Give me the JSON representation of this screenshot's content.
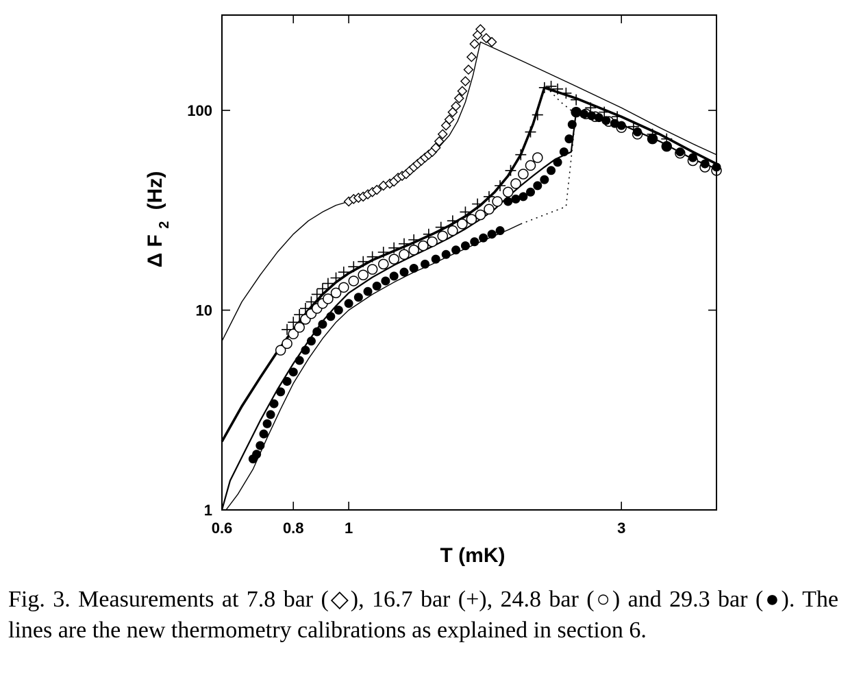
{
  "chart_data": {
    "type": "scatter",
    "xlabel": "T (mK)",
    "ylabel": {
      "main": "Δ F",
      "subscript": "2",
      "unit": "(Hz)"
    },
    "x_scale": "log",
    "y_scale": "log",
    "xlim": [
      0.6,
      4.4
    ],
    "ylim": [
      1,
      300
    ],
    "x_ticks": [
      {
        "value": 0.6,
        "label": "0.6"
      },
      {
        "value": 0.8,
        "label": "0.8"
      },
      {
        "value": 1,
        "label": "1"
      },
      {
        "value": 3,
        "label": "3"
      }
    ],
    "y_ticks": [
      {
        "value": 1,
        "label": "1"
      },
      {
        "value": 10,
        "label": "10"
      },
      {
        "value": 100,
        "label": "100"
      }
    ],
    "series": [
      {
        "marker": "diamond-open",
        "points": [
          [
            1.0,
            35
          ],
          [
            1.02,
            36
          ],
          [
            1.04,
            36.5
          ],
          [
            1.06,
            37
          ],
          [
            1.08,
            38
          ],
          [
            1.1,
            39
          ],
          [
            1.12,
            40
          ],
          [
            1.15,
            42
          ],
          [
            1.18,
            43
          ],
          [
            1.2,
            44
          ],
          [
            1.22,
            46
          ],
          [
            1.24,
            47
          ],
          [
            1.26,
            48
          ],
          [
            1.28,
            50
          ],
          [
            1.3,
            52
          ],
          [
            1.32,
            54
          ],
          [
            1.34,
            56
          ],
          [
            1.36,
            58
          ],
          [
            1.38,
            60
          ],
          [
            1.4,
            62
          ],
          [
            1.42,
            65
          ],
          [
            1.44,
            70
          ],
          [
            1.46,
            76
          ],
          [
            1.48,
            84
          ],
          [
            1.5,
            90
          ],
          [
            1.52,
            98
          ],
          [
            1.54,
            105
          ],
          [
            1.56,
            115
          ],
          [
            1.58,
            125
          ],
          [
            1.6,
            140
          ],
          [
            1.62,
            160
          ],
          [
            1.64,
            185
          ],
          [
            1.66,
            215
          ],
          [
            1.68,
            238
          ],
          [
            1.7,
            255
          ],
          [
            1.74,
            230
          ],
          [
            1.78,
            220
          ]
        ]
      },
      {
        "marker": "plus",
        "points": [
          [
            0.78,
            8
          ],
          [
            0.8,
            8.7
          ],
          [
            0.82,
            9.5
          ],
          [
            0.84,
            10.2
          ],
          [
            0.86,
            11
          ],
          [
            0.88,
            12
          ],
          [
            0.9,
            12.8
          ],
          [
            0.92,
            13.6
          ],
          [
            0.95,
            14.5
          ],
          [
            0.98,
            15.5
          ],
          [
            1.02,
            16.5
          ],
          [
            1.06,
            17.5
          ],
          [
            1.1,
            18.5
          ],
          [
            1.15,
            19.5
          ],
          [
            1.2,
            20.5
          ],
          [
            1.25,
            21.5
          ],
          [
            1.3,
            22.5
          ],
          [
            1.38,
            24
          ],
          [
            1.45,
            26
          ],
          [
            1.52,
            28
          ],
          [
            1.6,
            31
          ],
          [
            1.68,
            34
          ],
          [
            1.76,
            37
          ],
          [
            1.84,
            42
          ],
          [
            1.92,
            50
          ],
          [
            2.0,
            60
          ],
          [
            2.08,
            78
          ],
          [
            2.14,
            95
          ],
          [
            2.2,
            130
          ],
          [
            2.26,
            132
          ],
          [
            2.32,
            128
          ],
          [
            2.4,
            122
          ],
          [
            2.5,
            113
          ],
          [
            2.65,
            103
          ],
          [
            2.8,
            98
          ],
          [
            2.95,
            93
          ],
          [
            3.15,
            83
          ],
          [
            3.4,
            76
          ],
          [
            3.6,
            72
          ]
        ]
      },
      {
        "marker": "circle-open",
        "points": [
          [
            0.76,
            6.3
          ],
          [
            0.78,
            6.8
          ],
          [
            0.8,
            7.6
          ],
          [
            0.82,
            8.2
          ],
          [
            0.84,
            9
          ],
          [
            0.86,
            9.6
          ],
          [
            0.88,
            10.2
          ],
          [
            0.9,
            10.8
          ],
          [
            0.92,
            11.4
          ],
          [
            0.95,
            12.2
          ],
          [
            0.98,
            13
          ],
          [
            1.02,
            14
          ],
          [
            1.06,
            15
          ],
          [
            1.1,
            16
          ],
          [
            1.15,
            17
          ],
          [
            1.2,
            18
          ],
          [
            1.25,
            19
          ],
          [
            1.3,
            20
          ],
          [
            1.35,
            21
          ],
          [
            1.4,
            22
          ],
          [
            1.46,
            23.5
          ],
          [
            1.52,
            25
          ],
          [
            1.58,
            27
          ],
          [
            1.64,
            28.5
          ],
          [
            1.7,
            30
          ],
          [
            1.76,
            32
          ],
          [
            1.82,
            35
          ],
          [
            1.9,
            39
          ],
          [
            1.96,
            43
          ],
          [
            2.02,
            48
          ],
          [
            2.08,
            53
          ],
          [
            2.14,
            58
          ],
          [
            2.5,
            98
          ],
          [
            2.6,
            96
          ],
          [
            2.7,
            93
          ],
          [
            2.85,
            88
          ],
          [
            3.0,
            82
          ],
          [
            3.2,
            76
          ],
          [
            3.4,
            72
          ],
          [
            3.6,
            66
          ],
          [
            3.8,
            61
          ],
          [
            4.0,
            56
          ],
          [
            4.2,
            52
          ],
          [
            4.4,
            50
          ]
        ]
      },
      {
        "marker": "circle-filled",
        "points": [
          [
            0.68,
            1.8
          ],
          [
            0.69,
            1.9
          ],
          [
            0.7,
            2.1
          ],
          [
            0.71,
            2.4
          ],
          [
            0.72,
            2.7
          ],
          [
            0.73,
            3
          ],
          [
            0.74,
            3.4
          ],
          [
            0.76,
            3.9
          ],
          [
            0.78,
            4.4
          ],
          [
            0.8,
            4.9
          ],
          [
            0.82,
            5.6
          ],
          [
            0.84,
            6.3
          ],
          [
            0.86,
            7
          ],
          [
            0.88,
            7.8
          ],
          [
            0.9,
            8.5
          ],
          [
            0.93,
            9.3
          ],
          [
            0.96,
            10
          ],
          [
            1.0,
            10.8
          ],
          [
            1.04,
            11.6
          ],
          [
            1.08,
            12.4
          ],
          [
            1.12,
            13.2
          ],
          [
            1.16,
            14
          ],
          [
            1.2,
            14.8
          ],
          [
            1.25,
            15.5
          ],
          [
            1.3,
            16.2
          ],
          [
            1.36,
            17
          ],
          [
            1.42,
            18
          ],
          [
            1.48,
            19
          ],
          [
            1.54,
            20
          ],
          [
            1.6,
            21
          ],
          [
            1.66,
            22
          ],
          [
            1.72,
            23
          ],
          [
            1.78,
            24
          ],
          [
            1.84,
            25
          ],
          [
            1.9,
            35
          ],
          [
            1.96,
            36
          ],
          [
            2.02,
            37
          ],
          [
            2.08,
            39
          ],
          [
            2.14,
            42
          ],
          [
            2.2,
            45
          ],
          [
            2.26,
            50
          ],
          [
            2.32,
            55
          ],
          [
            2.38,
            62
          ],
          [
            2.43,
            72
          ],
          [
            2.46,
            85
          ],
          [
            2.5,
            98
          ],
          [
            2.58,
            96
          ],
          [
            2.66,
            94
          ],
          [
            2.74,
            92
          ],
          [
            2.82,
            89
          ],
          [
            2.92,
            86
          ],
          [
            3.0,
            84
          ],
          [
            3.2,
            78
          ],
          [
            3.4,
            72
          ],
          [
            3.6,
            66
          ],
          [
            3.8,
            62
          ],
          [
            4.0,
            58
          ],
          [
            4.2,
            54
          ],
          [
            4.4,
            52
          ]
        ]
      }
    ],
    "lines": [
      {
        "style": "thin",
        "points": [
          [
            0.6,
            7
          ],
          [
            0.65,
            11
          ],
          [
            0.7,
            15
          ],
          [
            0.75,
            19.5
          ],
          [
            0.8,
            24
          ],
          [
            0.85,
            28
          ],
          [
            0.9,
            31
          ],
          [
            0.95,
            33.5
          ],
          [
            1.0,
            35
          ],
          [
            1.1,
            39
          ],
          [
            1.2,
            44
          ],
          [
            1.3,
            51
          ],
          [
            1.4,
            60
          ],
          [
            1.5,
            75
          ],
          [
            1.55,
            88
          ],
          [
            1.6,
            110
          ],
          [
            1.65,
            150
          ],
          [
            1.7,
            220
          ],
          [
            2.0,
            178
          ],
          [
            2.5,
            132
          ],
          [
            3.0,
            103
          ],
          [
            3.5,
            82
          ],
          [
            4.0,
            68
          ],
          [
            4.4,
            60
          ]
        ]
      },
      {
        "style": "thick",
        "points": [
          [
            0.6,
            2.2
          ],
          [
            0.65,
            3.3
          ],
          [
            0.7,
            4.6
          ],
          [
            0.75,
            6.2
          ],
          [
            0.8,
            8
          ],
          [
            0.85,
            10
          ],
          [
            0.9,
            12
          ],
          [
            0.95,
            13.8
          ],
          [
            1.0,
            15.3
          ],
          [
            1.1,
            17.8
          ],
          [
            1.2,
            19.8
          ],
          [
            1.3,
            21.8
          ],
          [
            1.4,
            24
          ],
          [
            1.5,
            26.5
          ],
          [
            1.6,
            29.5
          ],
          [
            1.7,
            33.5
          ],
          [
            1.8,
            39
          ],
          [
            1.9,
            47
          ],
          [
            2.0,
            60
          ],
          [
            2.1,
            85
          ],
          [
            2.2,
            130
          ],
          [
            2.5,
            115
          ],
          [
            3.0,
            93
          ],
          [
            3.5,
            76
          ],
          [
            4.0,
            62
          ],
          [
            4.4,
            54
          ]
        ]
      },
      {
        "style": "medium",
        "points": [
          [
            0.6,
            1
          ],
          [
            0.62,
            1.4
          ],
          [
            0.66,
            2
          ],
          [
            0.7,
            2.8
          ],
          [
            0.75,
            4
          ],
          [
            0.8,
            5.4
          ],
          [
            0.85,
            7
          ],
          [
            0.9,
            8.8
          ],
          [
            0.95,
            10.5
          ],
          [
            1.0,
            12.2
          ],
          [
            1.1,
            14.6
          ],
          [
            1.2,
            16.8
          ],
          [
            1.3,
            18.8
          ],
          [
            1.4,
            20.8
          ],
          [
            1.5,
            23
          ],
          [
            1.6,
            25.5
          ],
          [
            1.7,
            28.5
          ],
          [
            1.8,
            32
          ],
          [
            1.9,
            37
          ],
          [
            2.0,
            42
          ],
          [
            2.1,
            47
          ],
          [
            2.2,
            52
          ],
          [
            2.3,
            57
          ],
          [
            2.45,
            62
          ],
          [
            2.5,
            98
          ],
          [
            3.0,
            85
          ],
          [
            3.5,
            70
          ],
          [
            4.0,
            57
          ],
          [
            4.4,
            51
          ]
        ]
      },
      {
        "style": "thin",
        "points": [
          [
            0.61,
            1
          ],
          [
            0.64,
            1.2
          ],
          [
            0.68,
            1.6
          ],
          [
            0.72,
            2.3
          ],
          [
            0.76,
            3.2
          ],
          [
            0.8,
            4.3
          ],
          [
            0.85,
            5.7
          ],
          [
            0.9,
            7.2
          ],
          [
            0.95,
            8.7
          ],
          [
            1.0,
            10
          ],
          [
            1.1,
            12
          ],
          [
            1.2,
            13.8
          ],
          [
            1.3,
            15.5
          ],
          [
            1.4,
            17
          ],
          [
            1.5,
            18.7
          ],
          [
            1.6,
            20.3
          ],
          [
            1.7,
            22
          ],
          [
            1.8,
            23.6
          ],
          [
            1.9,
            25.2
          ],
          [
            2.0,
            27
          ]
        ]
      },
      {
        "style": "dotted",
        "points": [
          [
            2.0,
            27
          ],
          [
            2.2,
            30
          ],
          [
            2.4,
            33
          ],
          [
            2.5,
            98
          ]
        ]
      },
      {
        "style": "dotted",
        "points": [
          [
            2.25,
            125
          ],
          [
            2.35,
            110
          ],
          [
            2.45,
            100
          ]
        ]
      }
    ],
    "caption": "Fig. 3. Measurements at 7.8 bar (◇), 16.7 bar (+), 24.8 bar (○) and 29.3 bar (●). The lines are the new thermometry calibrations as explained in section 6."
  }
}
